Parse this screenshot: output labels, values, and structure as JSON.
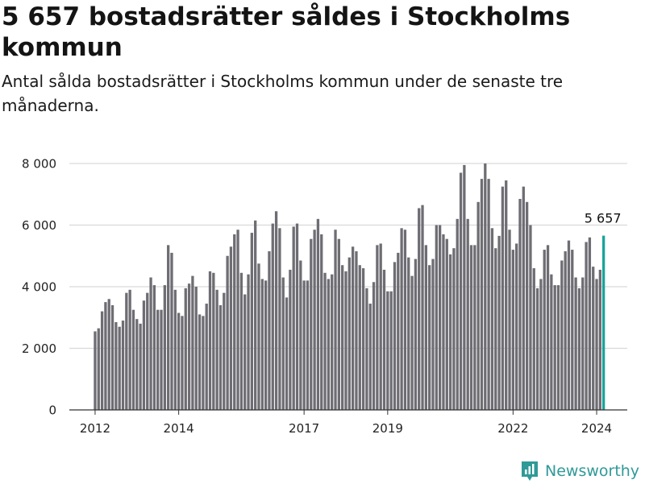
{
  "title": "5 657 bostadsrätter såldes i Stockholms kommun",
  "subtitle": "Antal sålda bostadsrätter i Stockholms kommun under de senaste tre månaderna.",
  "brand": "Newsworthy",
  "colors": {
    "bar": "#6e6d73",
    "highlight": "#1aa39a",
    "grid": "#d9d9d9",
    "text": "#222222"
  },
  "chart_data": {
    "type": "bar",
    "title": "5 657 bostadsrätter såldes i Stockholms kommun",
    "xlabel": "",
    "ylabel": "",
    "ylim": [
      0,
      8000
    ],
    "yticks": [
      0,
      2000,
      4000,
      6000,
      8000
    ],
    "ytick_labels": [
      "0",
      "2 000",
      "4 000",
      "6 000",
      "8 000"
    ],
    "xticks": [
      {
        "label": "2012",
        "index": 0
      },
      {
        "label": "2014",
        "index": 24
      },
      {
        "label": "2017",
        "index": 60
      },
      {
        "label": "2019",
        "index": 84
      },
      {
        "label": "2022",
        "index": 120
      },
      {
        "label": "2024",
        "index": 144
      }
    ],
    "start": "2012-01",
    "values": [
      2550,
      2650,
      3200,
      3500,
      3600,
      3400,
      2850,
      2700,
      2900,
      3800,
      3900,
      3250,
      2950,
      2800,
      3550,
      3800,
      4300,
      4050,
      3250,
      3250,
      4050,
      5350,
      5100,
      3900,
      3150,
      3050,
      3950,
      4100,
      4350,
      4000,
      3100,
      3050,
      3450,
      4500,
      4450,
      3900,
      3400,
      3800,
      5000,
      5300,
      5700,
      5850,
      4450,
      3750,
      4400,
      5750,
      6150,
      4750,
      4250,
      4200,
      5150,
      6050,
      6450,
      5900,
      4300,
      3650,
      4550,
      5950,
      6050,
      4850,
      4200,
      4200,
      5550,
      5850,
      6200,
      5700,
      4450,
      4250,
      4400,
      5850,
      5550,
      4700,
      4500,
      4950,
      5300,
      5150,
      4700,
      4600,
      3950,
      3450,
      4150,
      5350,
      5400,
      4550,
      3850,
      3850,
      4800,
      5100,
      5900,
      5850,
      4950,
      4350,
      4900,
      6550,
      6650,
      5350,
      4700,
      4900,
      6000,
      6000,
      5700,
      5550,
      5050,
      5250,
      6200,
      7700,
      7950,
      6200,
      5350,
      5350,
      6750,
      7500,
      8000,
      7500,
      5900,
      5250,
      5650,
      7250,
      7450,
      5850,
      5200,
      5400,
      6850,
      7250,
      6750,
      6000,
      4600,
      3950,
      4250,
      5200,
      5350,
      4400,
      4050,
      4050,
      4850,
      5150,
      5500,
      5200,
      4300,
      3950,
      4300,
      5450,
      5600,
      4650,
      4250,
      4550,
      5657
    ],
    "highlight_index": 146,
    "highlight_label": "5 657"
  }
}
